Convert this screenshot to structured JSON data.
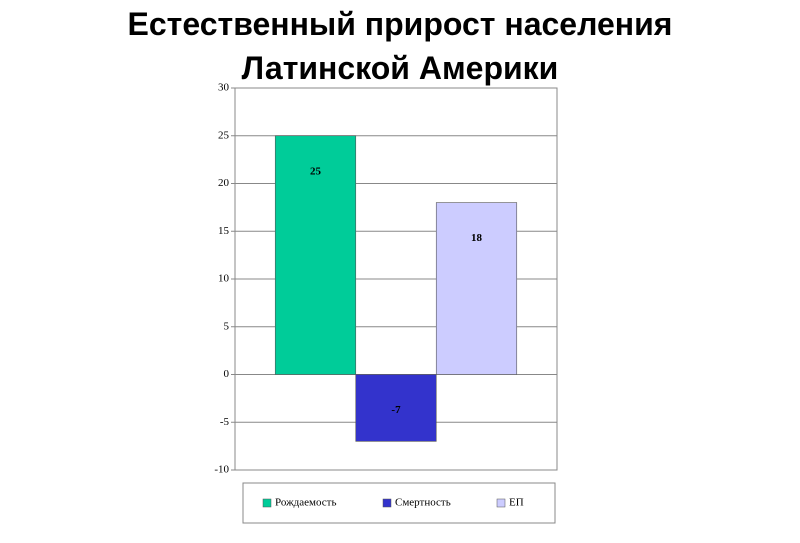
{
  "chart_data": {
    "type": "bar",
    "title": "Естественный прирост населения Латинской Америки",
    "categories": [
      null
    ],
    "series": [
      {
        "name": "Рождаемость",
        "color": "#00cc99",
        "values": [
          25
        ]
      },
      {
        "name": "Смертность",
        "color": "#3333cc",
        "values": [
          -7
        ]
      },
      {
        "name": "ЕП",
        "color": "#ccccff",
        "values": [
          18
        ]
      }
    ],
    "ylim": [
      -10,
      30
    ],
    "yticks": [
      -10,
      -5,
      0,
      5,
      10,
      15,
      20,
      25,
      30
    ],
    "grid": true,
    "legend": "bottom"
  }
}
